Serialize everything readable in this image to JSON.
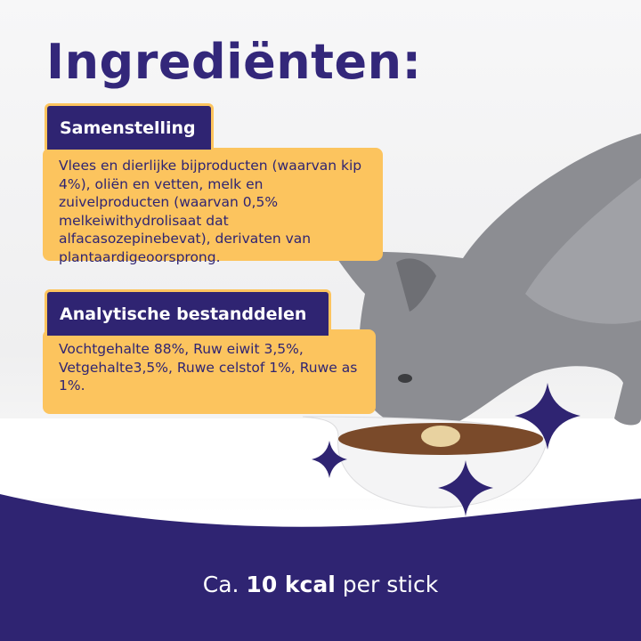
{
  "title": "Ingrediënten:",
  "sections": [
    {
      "heading": "Samenstelling",
      "text": "Vlees en dierlijke bijproducten (waarvan kip 4%), oliën en vetten, melk en zuivelproducten (waarvan 0,5% melkeiwithydrolisaat dat alfacasozepinebevat), derivaten van plantaardigeoorsprong."
    },
    {
      "heading": "Analytische bestanddelen",
      "text": "Vochtgehalte 88%, Ruw eiwit 3,5%, Vetgehalte3,5%, Ruwe celstof 1%, Ruwe as 1%."
    }
  ],
  "footer": {
    "prefix": "Ca. ",
    "highlight": "10 kcal",
    "suffix": " per stick"
  },
  "colors": {
    "brand_purple": "#2f2472",
    "accent_yellow": "#fcc45e"
  }
}
